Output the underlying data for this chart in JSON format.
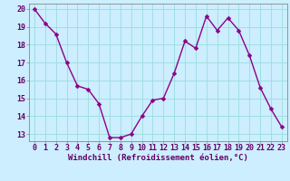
{
  "x": [
    0,
    1,
    2,
    3,
    4,
    5,
    6,
    7,
    8,
    9,
    10,
    11,
    12,
    13,
    14,
    15,
    16,
    17,
    18,
    19,
    20,
    21,
    22,
    23
  ],
  "y": [
    20.0,
    19.2,
    18.6,
    17.0,
    15.7,
    15.5,
    14.7,
    12.8,
    12.8,
    13.0,
    14.0,
    14.9,
    15.0,
    16.4,
    18.2,
    17.8,
    19.6,
    18.8,
    19.5,
    18.8,
    17.4,
    15.6,
    14.4,
    13.4
  ],
  "line_color": "#8B008B",
  "marker_color": "#8B008B",
  "bg_color": "#cceeff",
  "grid_color": "#99dddd",
  "xlabel": "Windchill (Refroidissement éolien,°C)",
  "xlim_min": -0.5,
  "xlim_max": 23.5,
  "ylim_min": 12.6,
  "ylim_max": 20.3,
  "xticks": [
    0,
    1,
    2,
    3,
    4,
    5,
    6,
    7,
    8,
    9,
    10,
    11,
    12,
    13,
    14,
    15,
    16,
    17,
    18,
    19,
    20,
    21,
    22,
    23
  ],
  "yticks": [
    13,
    14,
    15,
    16,
    17,
    18,
    19,
    20
  ],
  "xlabel_color": "#660066",
  "tick_color": "#660066",
  "spine_color": "#888888",
  "font_size_xlabel": 6.5,
  "font_size_ticks": 6.0,
  "line_width": 1.0,
  "marker_size": 2.5,
  "marker_style": "D"
}
